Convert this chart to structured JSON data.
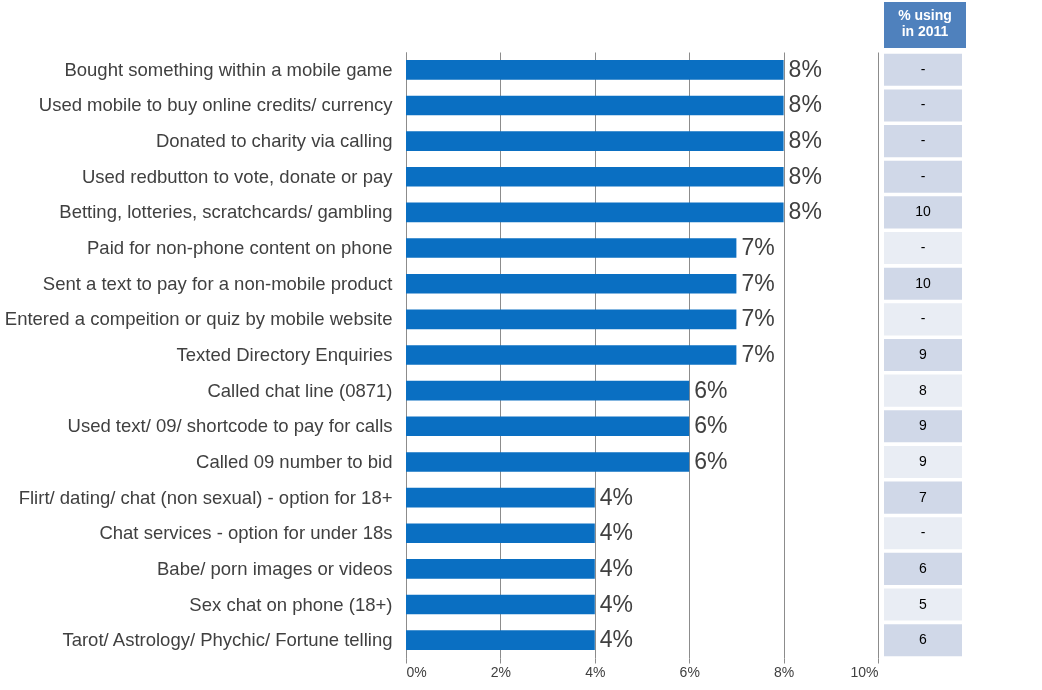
{
  "chart_data": [
    {
      "type": "bar",
      "orientation": "horizontal",
      "categories": [
        "Bought something within a mobile game",
        "Used mobile to buy online credits/ currency",
        "Donated to charity via calling",
        "Used redbutton to vote, donate or pay",
        "Betting, lotteries, scratchcards/ gambling",
        "Paid for non-phone content on phone",
        "Sent a text to pay for a non-mobile product",
        "Entered a compeition or quiz by mobile website",
        "Texted Directory Enquiries",
        "Called chat line (0871)",
        "Used text/ 09/ shortcode to pay for calls",
        "Called 09 number to bid",
        "Flirt/ dating/ chat (non sexual)  - option for 18+",
        "Chat services - option for under 18s",
        "Babe/ porn images or videos",
        "Sex chat on phone (18+)",
        "Tarot/ Astrology/ Phychic/ Fortune telling"
      ],
      "values": [
        8,
        8,
        8,
        8,
        8,
        7,
        7,
        7,
        7,
        6,
        6,
        6,
        4,
        4,
        4,
        4,
        4
      ],
      "value_labels": [
        "8%",
        "8%",
        "8%",
        "8%",
        "8%",
        "7%",
        "7%",
        "7%",
        "7%",
        "6%",
        "6%",
        "6%",
        "4%",
        "4%",
        "4%",
        "4%",
        "4%"
      ],
      "color": "#0a6fc2",
      "xlim": [
        0,
        10
      ],
      "xticks": [
        {
          "value": 0,
          "label": "0%"
        },
        {
          "value": 2,
          "label": "2%"
        },
        {
          "value": 4,
          "label": "4%"
        },
        {
          "value": 6,
          "label": "6%"
        },
        {
          "value": 8,
          "label": "8%"
        },
        {
          "value": 10,
          "label": "10%"
        }
      ],
      "grid": "x"
    },
    {
      "type": "other",
      "title": "% using in 2011",
      "annotations": [
        "-",
        "-",
        "-",
        "-",
        "10",
        "-",
        "10",
        "-",
        "9",
        "8",
        "9",
        "9",
        "7",
        "-",
        "6",
        "5",
        "6"
      ]
    }
  ]
}
